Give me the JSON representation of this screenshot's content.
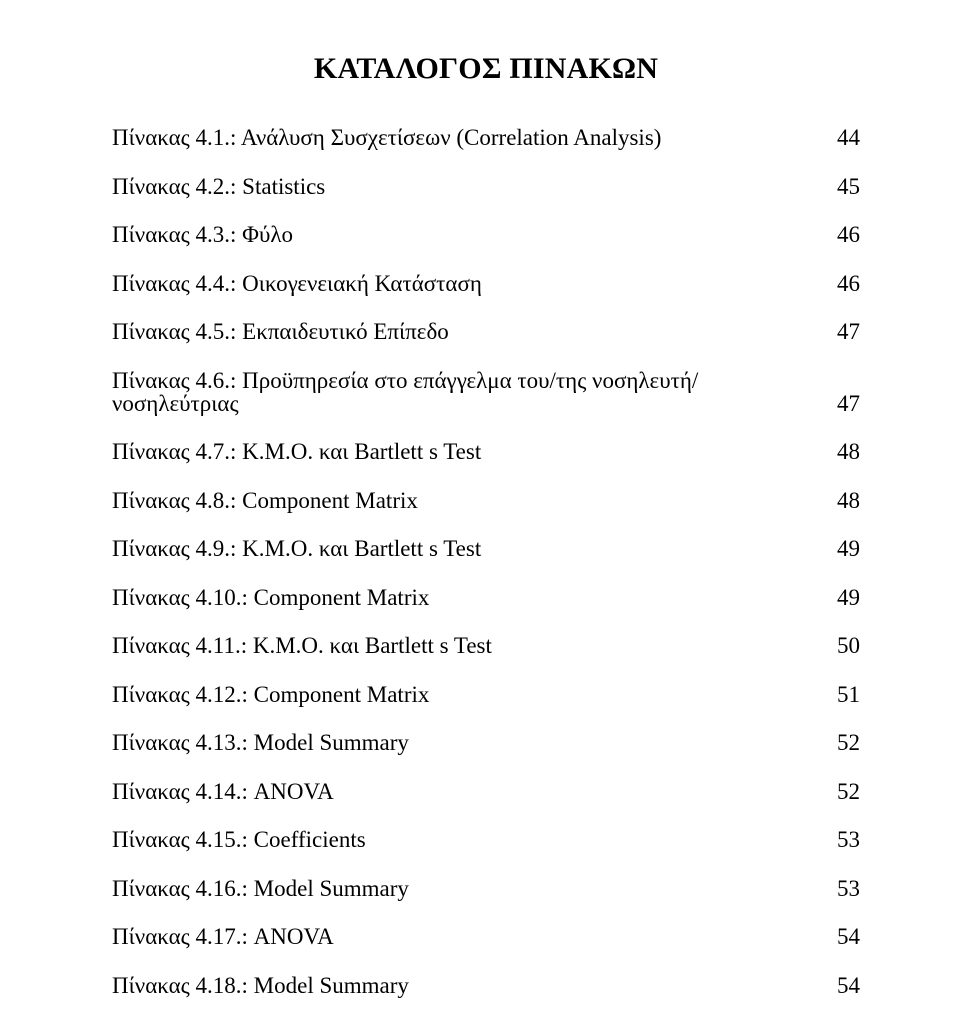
{
  "title": "ΚΑΤΑΛΟΓΟΣ ΠΙΝΑΚΩΝ",
  "entries": [
    {
      "label": "Πίνακας 4.1.: Ανάλυση Συσχετίσεων (Correlation Analysis)",
      "page": "44"
    },
    {
      "label": "Πίνακας 4.2.: Statistics",
      "page": "45"
    },
    {
      "label": "Πίνακας 4.3.: Φύλο",
      "page": "46"
    },
    {
      "label": "Πίνακας 4.4.: Οικογενειακή Κατάσταση",
      "page": "46"
    },
    {
      "label": "Πίνακας 4.5.: Εκπαιδευτικό Επίπεδο",
      "page": "47"
    },
    {
      "label": "Πίνακας 4.6.: Προϋπηρεσία στο επάγγελμα του/της νοσηλευτή/νοσηλεύτριας",
      "page": "47"
    },
    {
      "label": "Πίνακας 4.7.: K.M.O. και Bartlett s Test",
      "page": "48"
    },
    {
      "label": "Πίνακας 4.8.: Component Matrix",
      "page": "48"
    },
    {
      "label": "Πίνακας 4.9.: K.M.O. και Bartlett s Test",
      "page": "49"
    },
    {
      "label": "Πίνακας 4.10.: Component Matrix",
      "page": "49"
    },
    {
      "label": "Πίνακας 4.11.: K.M.O. και Bartlett s Test",
      "page": "50"
    },
    {
      "label": "Πίνακας 4.12.: Component Matrix",
      "page": "51"
    },
    {
      "label": "Πίνακας 4.13.: Model Summary",
      "page": "52"
    },
    {
      "label": "Πίνακας 4.14.: ANOVA",
      "page": "52"
    },
    {
      "label": "Πίνακας 4.15.: Coefficients",
      "page": "53"
    },
    {
      "label": "Πίνακας 4.16.: Model Summary",
      "page": "53"
    },
    {
      "label": "Πίνακας 4.17.: ANOVA",
      "page": "54"
    },
    {
      "label": "Πίνακας 4.18.: Model Summary",
      "page": "54"
    }
  ]
}
